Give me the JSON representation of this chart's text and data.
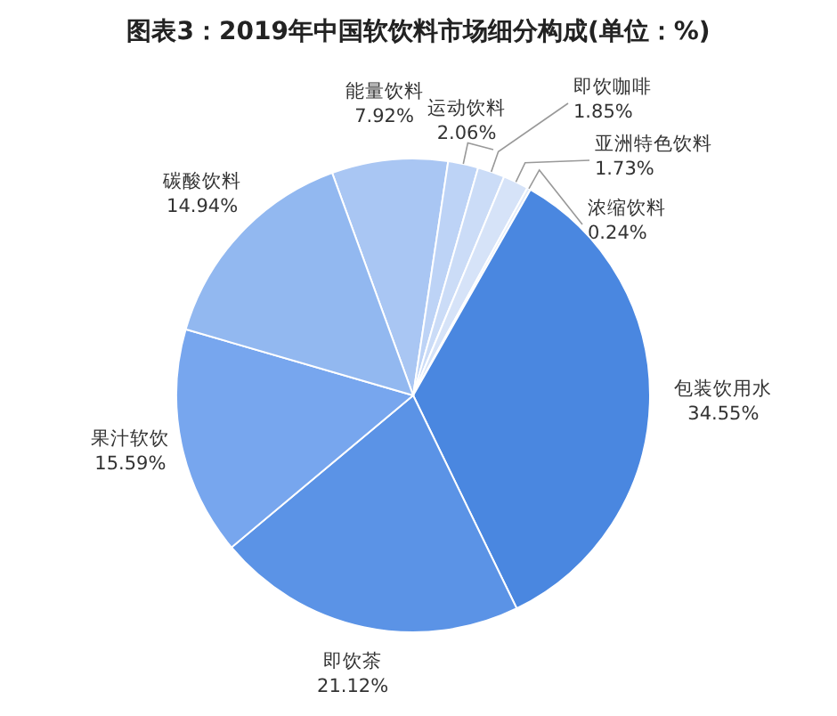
{
  "chart_data": {
    "type": "pie",
    "title": "图表3：2019年中国软饮料市场细分构成(单位：%)",
    "categories": [
      "能量饮料",
      "运动饮料",
      "即饮咖啡",
      "亚洲特色饮料",
      "浓缩饮料",
      "包装饮用水",
      "即饮茶",
      "果汁软饮",
      "碳酸饮料"
    ],
    "values": [
      7.92,
      2.06,
      1.85,
      1.73,
      0.24,
      34.55,
      21.12,
      15.59,
      14.94
    ],
    "value_labels": [
      "7.92%",
      "2.06%",
      "1.85%",
      "1.73%",
      "0.24%",
      "34.55%",
      "21.12%",
      "15.59%",
      "14.94%"
    ],
    "colors": [
      "#a9c6f3",
      "#bdd3f6",
      "#cbdcf7",
      "#d6e3f8",
      "#e0eaf9",
      "#4a87e0",
      "#5b93e6",
      "#77a6ee",
      "#92b8f0"
    ]
  }
}
